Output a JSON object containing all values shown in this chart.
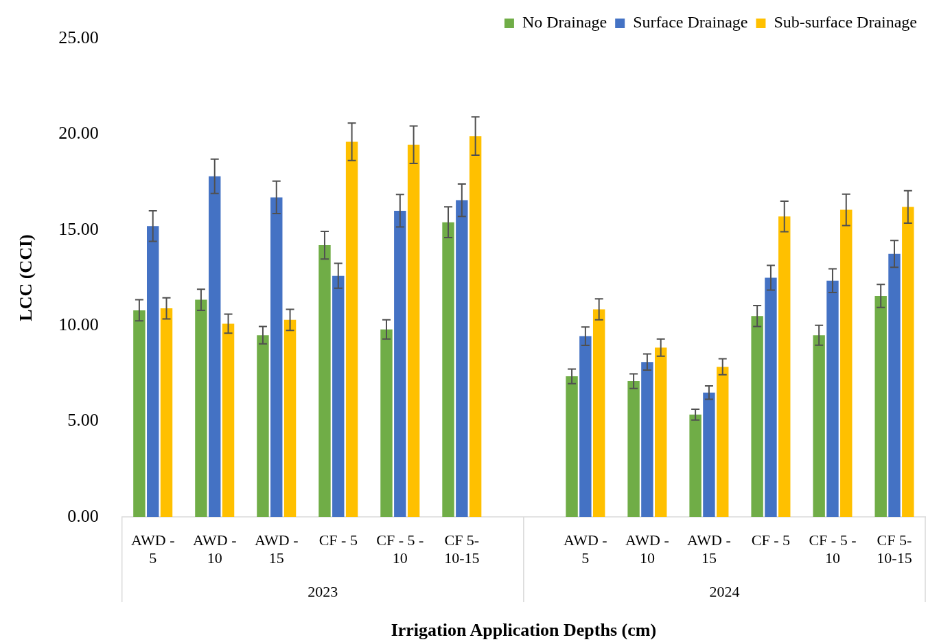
{
  "chart_data": {
    "type": "bar",
    "xlabel": "Irrigation Application Depths (cm)",
    "ylabel": "LCC (CCI)",
    "categories": [
      "AWD - 5",
      "AWD - 10",
      "AWD - 15",
      "CF - 5",
      "CF - 5 - 10",
      "CF 5-10-15",
      null,
      "AWD - 5",
      "AWD - 10",
      "AWD - 15",
      "CF - 5",
      "CF - 5 - 10",
      "CF 5-10-15"
    ],
    "annotations": [
      "2023",
      "2024"
    ],
    "series": [
      {
        "name": "No Drainage",
        "color": "#70ad47",
        "values": [
          10.8,
          11.35,
          9.5,
          14.2,
          9.8,
          15.4,
          0,
          7.35,
          7.1,
          5.35,
          10.5,
          9.5,
          11.55
        ],
        "errors": [
          0.55,
          0.55,
          0.45,
          0.72,
          0.5,
          0.8,
          null,
          0.38,
          0.38,
          0.28,
          0.55,
          0.52,
          0.6
        ]
      },
      {
        "name": "Surface Drainage",
        "color": "#4472c4",
        "values": [
          15.2,
          17.8,
          16.7,
          12.6,
          16.0,
          16.55,
          0,
          9.45,
          8.1,
          6.5,
          12.5,
          12.35,
          13.75
        ],
        "errors": [
          0.8,
          0.9,
          0.85,
          0.65,
          0.85,
          0.85,
          null,
          0.48,
          0.42,
          0.35,
          0.65,
          0.62,
          0.7
        ]
      },
      {
        "name": "Sub-surface Drainage",
        "color": "#ffc000",
        "values": [
          10.9,
          10.1,
          10.3,
          19.6,
          19.45,
          19.9,
          0,
          10.85,
          8.85,
          7.85,
          15.7,
          16.05,
          16.2
        ],
        "errors": [
          0.55,
          0.5,
          0.55,
          0.98,
          0.98,
          1.0,
          null,
          0.55,
          0.45,
          0.42,
          0.8,
          0.82,
          0.85
        ]
      }
    ],
    "ylim": [
      0,
      25
    ],
    "yticks": [
      {
        "value": 0,
        "label": "0.00"
      },
      {
        "value": 5,
        "label": "5.00"
      },
      {
        "value": 10,
        "label": "10.00"
      },
      {
        "value": 15,
        "label": "15.00"
      },
      {
        "value": 20,
        "label": "20.00"
      },
      {
        "value": 25,
        "label": "25.00"
      }
    ],
    "grid": false,
    "legend": "top right"
  }
}
